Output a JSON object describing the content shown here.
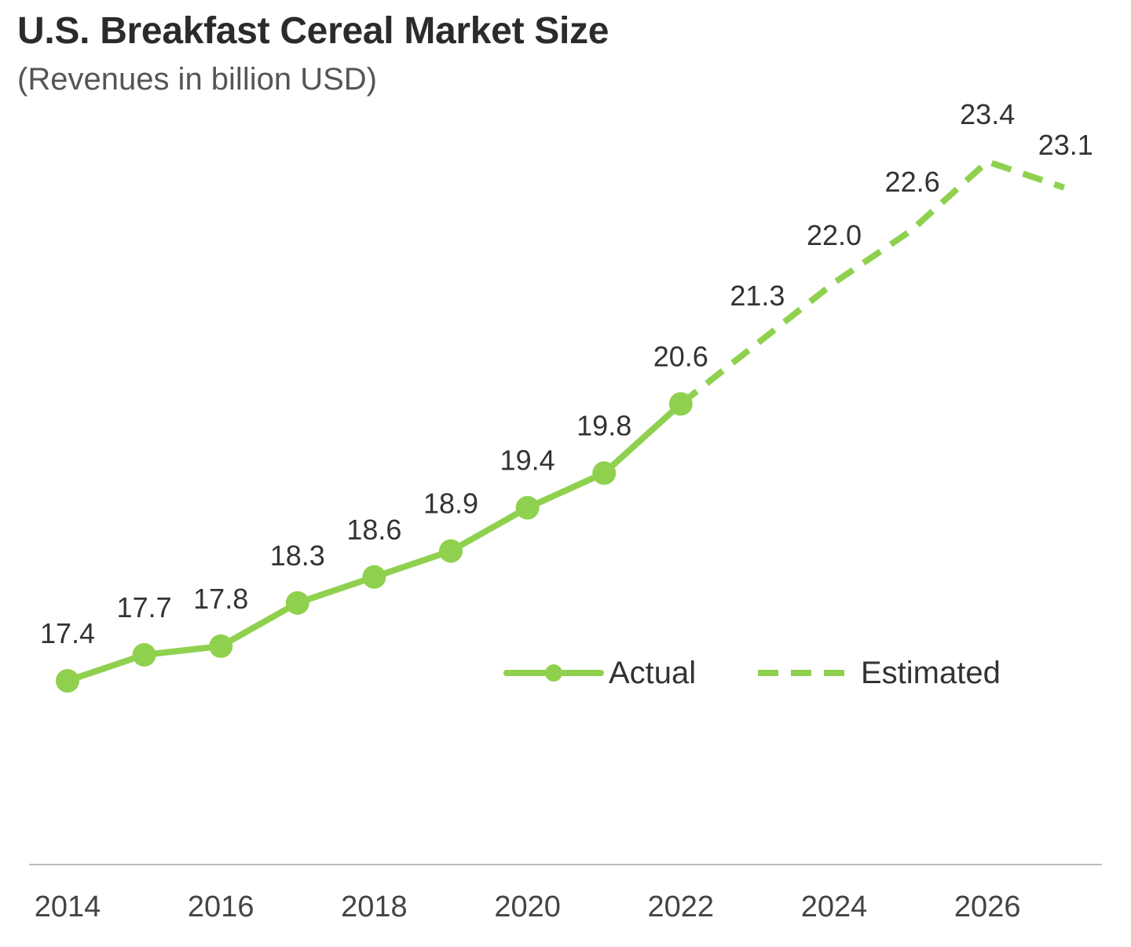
{
  "chart_data": {
    "type": "line",
    "title": "U.S. Breakfast Cereal Market Size",
    "subtitle": "(Revenues in billion USD)",
    "xlabel": "",
    "ylabel": "",
    "x": [
      2014,
      2015,
      2016,
      2017,
      2018,
      2019,
      2020,
      2021,
      2022,
      2023,
      2024,
      2025,
      2026,
      2027
    ],
    "x_ticks": [
      "2014",
      "2016",
      "2018",
      "2020",
      "2022",
      "2024",
      "2026"
    ],
    "series": [
      {
        "name": "Actual",
        "style": "solid-with-markers",
        "x": [
          2014,
          2015,
          2016,
          2017,
          2018,
          2019,
          2020,
          2021,
          2022
        ],
        "values": [
          17.4,
          17.7,
          17.8,
          18.3,
          18.6,
          18.9,
          19.4,
          19.8,
          20.6
        ],
        "labels": [
          "17.4",
          "17.7",
          "17.8",
          "18.3",
          "18.6",
          "18.9",
          "19.4",
          "19.8",
          "20.6"
        ]
      },
      {
        "name": "Estimated",
        "style": "dashed",
        "x": [
          2022,
          2023,
          2024,
          2025,
          2026,
          2027
        ],
        "values": [
          20.6,
          21.3,
          22.0,
          22.6,
          23.4,
          23.1
        ],
        "labels": [
          "21.3",
          "22.0",
          "22.6",
          "23.4",
          "23.1"
        ]
      }
    ],
    "legend": {
      "position": "center-right",
      "items": [
        "Actual",
        "Estimated"
      ]
    },
    "grid": false,
    "color": "#8fd14f",
    "axis_color": "#bbbbbb"
  }
}
